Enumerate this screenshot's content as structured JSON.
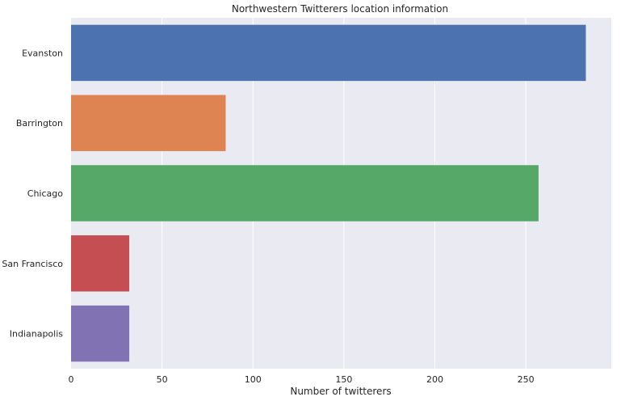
{
  "chart_data": {
    "type": "bar",
    "orientation": "horizontal",
    "title": "Northwestern Twitterers location information",
    "xlabel": "Number of twitterers",
    "ylabel": "",
    "categories": [
      "Evanston",
      "Barrington",
      "Chicago",
      "San Francisco",
      "Indianapolis"
    ],
    "values": [
      283,
      85,
      257,
      32,
      32
    ],
    "colors": [
      "#4c72b0",
      "#dd8452",
      "#55a868",
      "#c44e52",
      "#8172b3"
    ],
    "xlim": [
      0,
      297
    ],
    "xticks": [
      0,
      50,
      100,
      150,
      200,
      250
    ],
    "xtick_labels": [
      "0",
      "50",
      "100",
      "150",
      "200",
      "250"
    ],
    "grid": true,
    "background": "#eaeaf2",
    "gridline_color": "#ffffff"
  }
}
